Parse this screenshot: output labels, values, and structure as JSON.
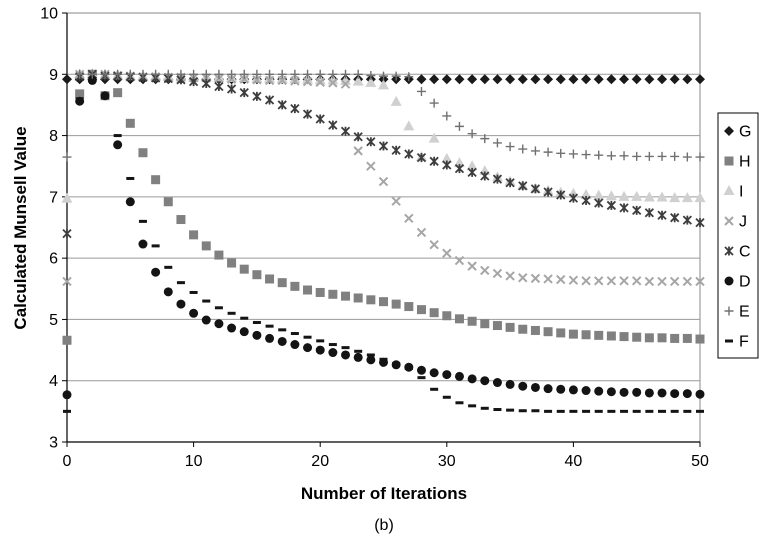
{
  "chart_data": {
    "type": "scatter",
    "xlabel": "Number of Iterations",
    "ylabel": "Calculated Munsell Value",
    "caption": "(b)",
    "xlim": [
      0,
      50
    ],
    "ylim": [
      3,
      10
    ],
    "xticks": [
      0,
      10,
      20,
      30,
      40,
      50
    ],
    "yticks": [
      3,
      4,
      5,
      6,
      7,
      8,
      9,
      10
    ],
    "grid": "horizontal",
    "legend_position": "right",
    "x": [
      0,
      1,
      2,
      3,
      4,
      5,
      6,
      7,
      8,
      9,
      10,
      11,
      12,
      13,
      14,
      15,
      16,
      17,
      18,
      19,
      20,
      21,
      22,
      23,
      24,
      25,
      26,
      27,
      28,
      29,
      30,
      31,
      32,
      33,
      34,
      35,
      36,
      37,
      38,
      39,
      40,
      41,
      42,
      43,
      44,
      45,
      46,
      47,
      48,
      49,
      50
    ],
    "series": [
      {
        "name": "G",
        "marker": "diamond",
        "color": "#1a1a1a",
        "values": [
          8.92,
          8.92,
          8.92,
          8.92,
          8.92,
          8.92,
          8.92,
          8.92,
          8.92,
          8.92,
          8.92,
          8.92,
          8.92,
          8.92,
          8.92,
          8.92,
          8.92,
          8.92,
          8.92,
          8.92,
          8.92,
          8.92,
          8.92,
          8.92,
          8.92,
          8.92,
          8.92,
          8.92,
          8.92,
          8.92,
          8.92,
          8.92,
          8.92,
          8.92,
          8.92,
          8.92,
          8.92,
          8.92,
          8.92,
          8.92,
          8.92,
          8.92,
          8.92,
          8.92,
          8.92,
          8.92,
          8.92,
          8.92,
          8.92,
          8.92,
          8.92
        ]
      },
      {
        "name": "H",
        "marker": "square",
        "color": "#808080",
        "values": [
          4.66,
          8.68,
          9.0,
          8.65,
          8.7,
          8.2,
          7.72,
          7.28,
          6.92,
          6.63,
          6.38,
          6.2,
          6.05,
          5.92,
          5.82,
          5.73,
          5.66,
          5.6,
          5.54,
          5.48,
          5.44,
          5.41,
          5.38,
          5.35,
          5.32,
          5.29,
          5.25,
          5.21,
          5.16,
          5.11,
          5.06,
          5.01,
          4.97,
          4.93,
          4.9,
          4.87,
          4.84,
          4.82,
          4.8,
          4.78,
          4.76,
          4.75,
          4.74,
          4.73,
          4.72,
          4.71,
          4.7,
          4.7,
          4.69,
          4.69,
          4.68
        ]
      },
      {
        "name": "I",
        "marker": "triangle",
        "color": "#d0d0d0",
        "values": [
          6.97,
          9.0,
          9.0,
          8.99,
          8.98,
          8.97,
          8.97,
          8.96,
          8.96,
          8.95,
          8.95,
          8.95,
          8.95,
          8.94,
          8.94,
          8.93,
          8.93,
          8.92,
          8.92,
          8.91,
          8.9,
          8.9,
          8.89,
          8.88,
          8.86,
          8.82,
          8.55,
          8.15,
          7.65,
          7.95,
          7.62,
          7.55,
          7.5,
          7.42,
          7.32,
          7.25,
          7.18,
          7.13,
          7.1,
          7.07,
          7.05,
          7.03,
          7.02,
          7.01,
          7.0,
          7.0,
          6.99,
          6.99,
          6.98,
          6.98,
          6.98
        ]
      },
      {
        "name": "J",
        "marker": "x",
        "color": "#a6a6a6",
        "values": [
          5.62,
          9.0,
          9.0,
          9.0,
          8.98,
          8.97,
          8.96,
          8.96,
          8.95,
          8.95,
          8.94,
          8.94,
          8.93,
          8.92,
          8.92,
          8.91,
          8.9,
          8.9,
          8.89,
          8.88,
          8.87,
          8.86,
          8.84,
          7.75,
          7.5,
          7.25,
          6.93,
          6.65,
          6.42,
          6.22,
          6.08,
          5.96,
          5.87,
          5.8,
          5.75,
          5.71,
          5.68,
          5.67,
          5.66,
          5.65,
          5.64,
          5.63,
          5.63,
          5.63,
          5.63,
          5.63,
          5.62,
          5.62,
          5.62,
          5.62,
          5.62
        ]
      },
      {
        "name": "C",
        "marker": "asterisk",
        "color": "#3d3d3d",
        "values": [
          6.4,
          8.96,
          9.0,
          8.97,
          8.97,
          8.96,
          8.95,
          8.94,
          8.93,
          8.91,
          8.88,
          8.85,
          8.8,
          8.76,
          8.7,
          8.64,
          8.58,
          8.5,
          8.44,
          8.35,
          8.27,
          8.17,
          8.07,
          7.98,
          7.9,
          7.83,
          7.76,
          7.7,
          7.64,
          7.58,
          7.52,
          7.46,
          7.4,
          7.34,
          7.29,
          7.23,
          7.18,
          7.13,
          7.08,
          7.03,
          6.98,
          6.94,
          6.9,
          6.86,
          6.82,
          6.78,
          6.74,
          6.7,
          6.66,
          6.62,
          6.58
        ]
      },
      {
        "name": "D",
        "marker": "circle",
        "color": "#141414",
        "values": [
          3.77,
          8.56,
          8.9,
          8.65,
          7.85,
          6.92,
          6.23,
          5.77,
          5.45,
          5.25,
          5.1,
          4.99,
          4.93,
          4.86,
          4.8,
          4.74,
          4.69,
          4.64,
          4.59,
          4.54,
          4.5,
          4.46,
          4.42,
          4.38,
          4.34,
          4.3,
          4.26,
          4.22,
          4.17,
          4.13,
          4.1,
          4.07,
          4.03,
          4.0,
          3.97,
          3.94,
          3.91,
          3.89,
          3.87,
          3.86,
          3.85,
          3.84,
          3.83,
          3.82,
          3.81,
          3.81,
          3.8,
          3.8,
          3.79,
          3.79,
          3.78
        ]
      },
      {
        "name": "E",
        "marker": "plus",
        "color": "#707070",
        "values": [
          7.65,
          9.0,
          9.0,
          9.0,
          9.0,
          9.0,
          9.0,
          9.0,
          9.0,
          9.0,
          9.0,
          9.0,
          9.0,
          9.0,
          9.0,
          9.0,
          9.0,
          9.0,
          9.0,
          9.0,
          9.0,
          9.0,
          9.0,
          9.0,
          8.98,
          8.97,
          8.97,
          8.96,
          8.72,
          8.53,
          8.32,
          8.15,
          8.03,
          7.95,
          7.88,
          7.82,
          7.78,
          7.75,
          7.73,
          7.71,
          7.7,
          7.69,
          7.68,
          7.67,
          7.67,
          7.66,
          7.66,
          7.66,
          7.66,
          7.65,
          7.65
        ]
      },
      {
        "name": "F",
        "marker": "dash",
        "color": "#141414",
        "values": [
          3.5,
          8.6,
          8.9,
          8.62,
          8.0,
          7.3,
          6.6,
          6.2,
          5.85,
          5.6,
          5.44,
          5.3,
          5.19,
          5.1,
          5.02,
          4.95,
          4.89,
          4.83,
          4.77,
          4.71,
          4.65,
          4.59,
          4.54,
          4.48,
          4.42,
          4.35,
          4.28,
          4.2,
          4.05,
          3.86,
          3.73,
          3.64,
          3.59,
          3.55,
          3.53,
          3.52,
          3.51,
          3.51,
          3.5,
          3.5,
          3.5,
          3.5,
          3.5,
          3.5,
          3.5,
          3.5,
          3.5,
          3.5,
          3.5,
          3.5,
          3.5
        ]
      }
    ]
  }
}
